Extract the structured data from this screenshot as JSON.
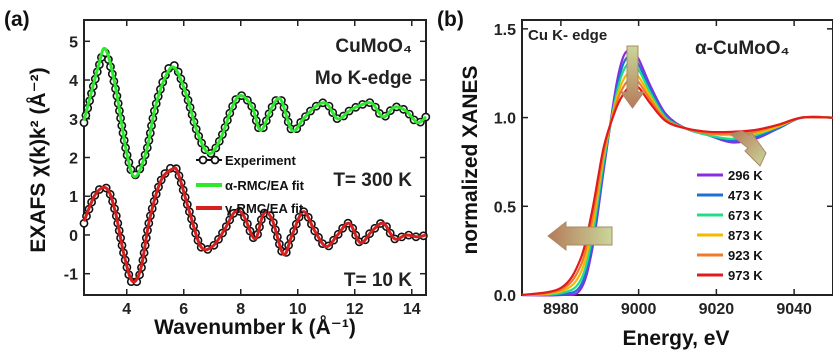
{
  "colors": {
    "experiment": "#111111",
    "alpha_fit": "#2ee82e",
    "gamma_fit": "#d61f1f",
    "arrow_fill": "#c9d79a",
    "arrow_fill_b": "#b57a5a"
  },
  "chart_data": [
    {
      "type": "line",
      "panel_label": "(a)",
      "xlabel": "Wavenumber k (Å⁻¹)",
      "ylabel": "EXAFS χ(k)k² (Å⁻²)",
      "xlim": [
        2.5,
        14.5
      ],
      "ylim": [
        -1.55,
        5.55
      ],
      "xticks": [
        4,
        6,
        8,
        10,
        12,
        14
      ],
      "yticks": [
        -1,
        0,
        1,
        2,
        3,
        4,
        5
      ],
      "xtick_labels": [
        "4",
        "6",
        "8",
        "10",
        "12",
        "14"
      ],
      "ytick_labels": [
        "-1",
        "0",
        "1",
        "2",
        "3",
        "4",
        "5"
      ],
      "annotations": {
        "compound": "CuMoO₄",
        "edge": "Mo K-edge",
        "temp_high": "T= 300 K",
        "temp_low": "T=  10 K"
      },
      "legend": [
        {
          "label": "Experiment",
          "style": "line-marker"
        },
        {
          "label": "α-RMC/EA fit",
          "style": "line"
        },
        {
          "label": "γ-RMC/EA fit",
          "style": "line"
        }
      ],
      "series": [
        {
          "name": "Experiment",
          "temperature": "300 K",
          "x": [
            2.5,
            3.0,
            3.25,
            3.6,
            4.0,
            4.3,
            4.7,
            5.0,
            5.4,
            5.7,
            6.1,
            6.5,
            6.9,
            7.3,
            7.7,
            8.0,
            8.4,
            8.7,
            9.1,
            9.4,
            9.8,
            10.2,
            10.6,
            11.0,
            11.4,
            11.8,
            12.2,
            12.6,
            13.0,
            13.4,
            13.8,
            14.2,
            14.5
          ],
          "y": [
            2.9,
            4.3,
            4.7,
            3.8,
            2.1,
            1.55,
            2.2,
            3.3,
            4.2,
            4.35,
            3.6,
            2.6,
            2.1,
            2.5,
            3.3,
            3.6,
            3.3,
            2.7,
            3.3,
            3.5,
            2.7,
            3.0,
            3.3,
            3.4,
            3.0,
            3.2,
            3.35,
            3.4,
            3.05,
            3.3,
            3.2,
            2.9,
            3.05
          ]
        },
        {
          "name": "α-RMC/EA fit",
          "temperature": "300 K",
          "x": [
            2.5,
            3.0,
            3.25,
            3.6,
            4.0,
            4.3,
            4.7,
            5.0,
            5.4,
            5.7,
            6.1,
            6.5,
            6.9,
            7.3,
            7.7,
            8.0,
            8.4,
            8.7,
            9.1,
            9.4,
            9.8,
            10.2,
            10.6,
            11.0,
            11.4,
            11.8,
            12.2,
            12.6,
            13.0,
            13.4,
            13.8,
            14.2,
            14.5
          ],
          "y": [
            2.95,
            4.35,
            4.8,
            3.85,
            2.1,
            1.5,
            2.2,
            3.3,
            4.15,
            4.3,
            3.6,
            2.6,
            2.1,
            2.5,
            3.3,
            3.6,
            3.3,
            2.7,
            3.3,
            3.5,
            2.7,
            3.0,
            3.3,
            3.4,
            3.0,
            3.2,
            3.35,
            3.4,
            3.05,
            3.3,
            3.2,
            2.9,
            3.05
          ]
        },
        {
          "name": "Experiment",
          "temperature": "10 K",
          "x": [
            2.5,
            2.9,
            3.3,
            3.6,
            3.9,
            4.2,
            4.5,
            4.8,
            5.2,
            5.6,
            5.8,
            6.2,
            6.6,
            7.0,
            7.4,
            7.8,
            8.1,
            8.5,
            8.8,
            9.1,
            9.5,
            9.8,
            10.2,
            10.6,
            11.0,
            11.4,
            11.8,
            12.2,
            12.6,
            13.0,
            13.4,
            13.8,
            14.2,
            14.5
          ],
          "y": [
            0.3,
            1.05,
            1.2,
            0.6,
            -0.5,
            -1.25,
            -0.9,
            0.4,
            1.4,
            1.75,
            1.6,
            0.6,
            -0.3,
            -0.3,
            0.1,
            0.6,
            0.5,
            -0.1,
            0.55,
            0.4,
            -0.5,
            0.0,
            0.6,
            0.1,
            -0.3,
            0.0,
            0.3,
            -0.2,
            0.1,
            0.3,
            -0.1,
            0.0,
            -0.05,
            0.0
          ]
        },
        {
          "name": "γ-RMC/EA fit",
          "temperature": "10 K",
          "x": [
            2.5,
            2.9,
            3.3,
            3.6,
            3.9,
            4.2,
            4.5,
            4.8,
            5.2,
            5.6,
            5.8,
            6.2,
            6.6,
            7.0,
            7.4,
            7.8,
            8.1,
            8.5,
            8.8,
            9.1,
            9.5,
            9.8,
            10.2,
            10.6,
            11.0,
            11.4,
            11.8,
            12.2,
            12.6,
            13.0,
            13.4,
            13.8,
            14.2,
            14.5
          ],
          "y": [
            0.35,
            1.05,
            1.2,
            0.6,
            -0.5,
            -1.2,
            -0.85,
            0.4,
            1.4,
            1.7,
            1.6,
            0.6,
            -0.3,
            -0.3,
            0.1,
            0.6,
            0.5,
            -0.1,
            0.55,
            0.4,
            -0.5,
            0.0,
            0.6,
            0.1,
            -0.3,
            0.0,
            0.3,
            -0.2,
            0.1,
            0.3,
            -0.1,
            0.0,
            -0.05,
            0.0
          ]
        }
      ]
    },
    {
      "type": "line",
      "panel_label": "(b)",
      "xlabel": "Energy, eV",
      "ylabel": "normalized XANES",
      "xlim": [
        8970,
        9050
      ],
      "ylim": [
        0,
        1.55
      ],
      "xticks": [
        8980,
        9000,
        9020,
        9040
      ],
      "yticks": [
        0.0,
        0.5,
        1.0,
        1.5
      ],
      "xtick_labels": [
        "8980",
        "9000",
        "9020",
        "9040"
      ],
      "ytick_labels": [
        "0.0",
        "0.5",
        "1.0",
        "1.5"
      ],
      "annotations": {
        "edge": "Cu K- edge",
        "compound": "α-CuMoO₄"
      },
      "legend_placement": "lower-right",
      "series": [
        {
          "name": "296 K",
          "color": "#8a2be2",
          "x": [
            8970,
            8980,
            8985,
            8988,
            8991,
            8994,
            8996,
            8998,
            9000,
            9003,
            9007,
            9012,
            9018,
            9024,
            9030,
            9036,
            9042,
            9050
          ],
          "y": [
            0,
            0.0,
            0.03,
            0.25,
            0.7,
            1.15,
            1.34,
            1.38,
            1.33,
            1.18,
            1.02,
            0.94,
            0.9,
            0.86,
            0.88,
            0.94,
            1.0,
            1.0
          ]
        },
        {
          "name": "473 K",
          "color": "#1f6fd6",
          "x": [
            8970,
            8980,
            8985,
            8988,
            8991,
            8994,
            8996,
            8998,
            9000,
            9003,
            9007,
            9012,
            9018,
            9024,
            9030,
            9036,
            9042,
            9050
          ],
          "y": [
            0,
            0.005,
            0.05,
            0.28,
            0.72,
            1.12,
            1.3,
            1.35,
            1.3,
            1.16,
            1.01,
            0.94,
            0.9,
            0.87,
            0.89,
            0.94,
            1.0,
            1.0
          ]
        },
        {
          "name": "673 K",
          "color": "#22dd88",
          "x": [
            8970,
            8980,
            8985,
            8988,
            8991,
            8994,
            8996,
            8998,
            9000,
            9003,
            9007,
            9012,
            9018,
            9024,
            9030,
            9036,
            9042,
            9050
          ],
          "y": [
            0,
            0.01,
            0.08,
            0.32,
            0.75,
            1.1,
            1.26,
            1.31,
            1.27,
            1.14,
            1.0,
            0.94,
            0.9,
            0.88,
            0.9,
            0.95,
            1.0,
            1.0
          ]
        },
        {
          "name": "873 K",
          "color": "#f5b800",
          "x": [
            8970,
            8980,
            8985,
            8988,
            8991,
            8994,
            8996,
            8998,
            9000,
            9003,
            9007,
            9012,
            9018,
            9024,
            9030,
            9036,
            9042,
            9050
          ],
          "y": [
            0,
            0.02,
            0.12,
            0.37,
            0.78,
            1.08,
            1.21,
            1.26,
            1.23,
            1.12,
            0.99,
            0.94,
            0.91,
            0.9,
            0.91,
            0.95,
            1.0,
            1.0
          ]
        },
        {
          "name": "923 K",
          "color": "#f07a2a",
          "x": [
            8970,
            8980,
            8985,
            8988,
            8991,
            8994,
            8996,
            8998,
            9000,
            9003,
            9007,
            9012,
            9018,
            9024,
            9030,
            9036,
            9042,
            9050
          ],
          "y": [
            0,
            0.03,
            0.16,
            0.42,
            0.8,
            1.06,
            1.17,
            1.22,
            1.2,
            1.1,
            0.99,
            0.94,
            0.91,
            0.91,
            0.92,
            0.96,
            1.0,
            1.0
          ]
        },
        {
          "name": "973 K",
          "color": "#e01b1b",
          "x": [
            8970,
            8980,
            8985,
            8988,
            8991,
            8994,
            8996,
            8998,
            9000,
            9003,
            9007,
            9012,
            9018,
            9024,
            9030,
            9036,
            9042,
            9050
          ],
          "y": [
            0,
            0.04,
            0.2,
            0.47,
            0.83,
            1.04,
            1.13,
            1.18,
            1.17,
            1.08,
            0.98,
            0.94,
            0.92,
            0.92,
            0.93,
            0.96,
            1.0,
            1.0
          ]
        }
      ]
    }
  ]
}
